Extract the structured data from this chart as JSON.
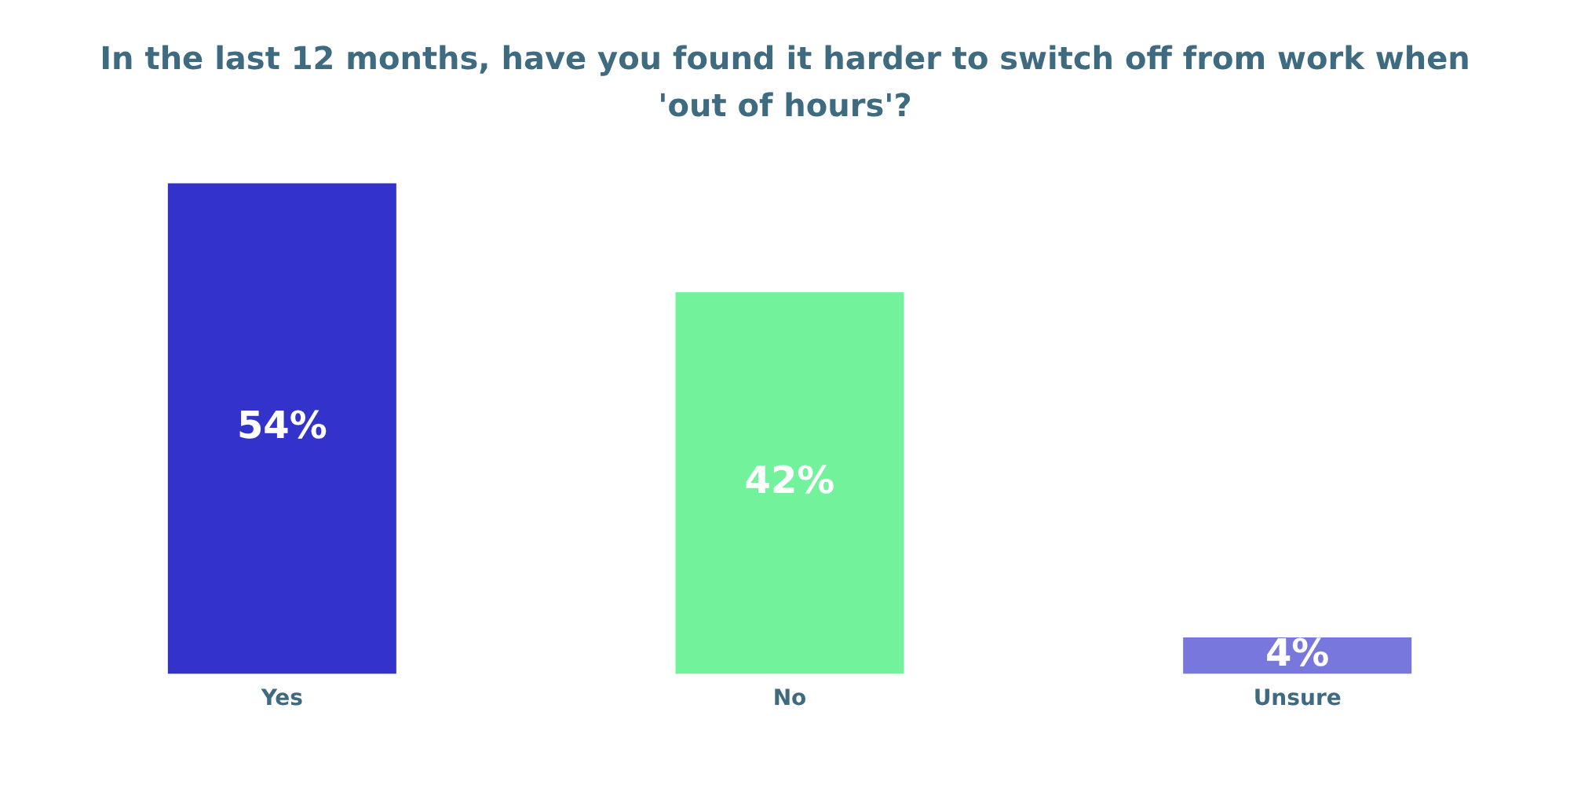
{
  "chart_data": {
    "type": "bar",
    "title": "In the last 12 months, have you found it harder to switch off from work when 'out of hours'?",
    "categories": [
      "Yes",
      "No",
      "Unsure"
    ],
    "values": [
      54,
      42,
      4
    ],
    "colors": [
      "#3333cc",
      "#73f29c",
      "#7777dd"
    ],
    "value_labels": [
      "54%",
      "42%",
      "4%"
    ],
    "grid": false,
    "legend": false
  }
}
